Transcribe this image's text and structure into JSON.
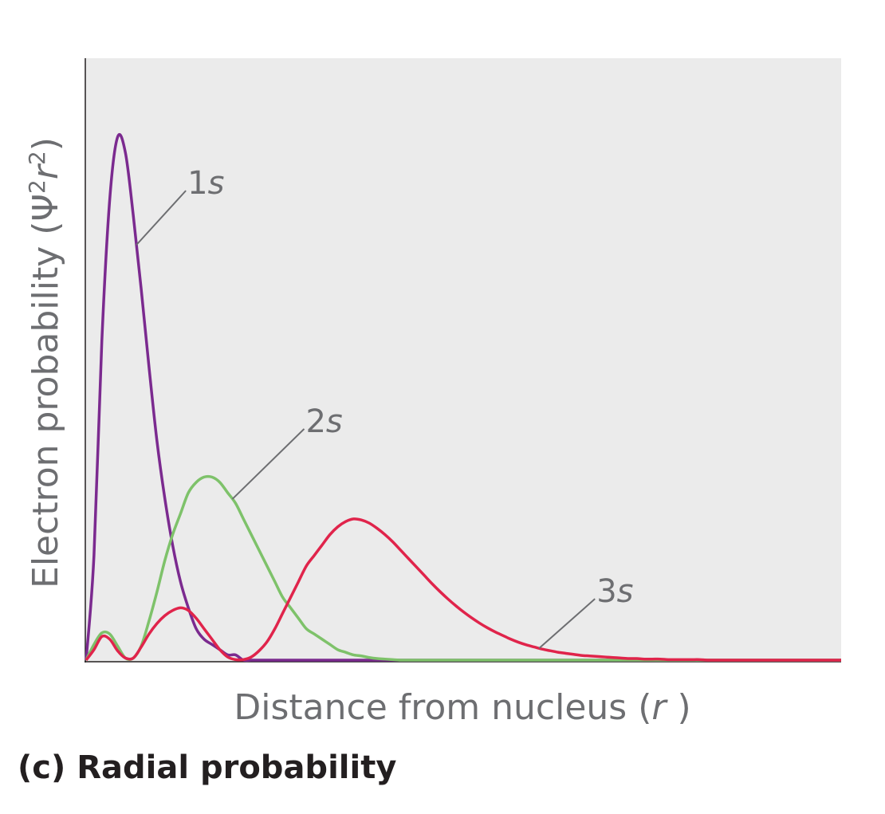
{
  "caption": "(c) Radial probability",
  "chart_data": {
    "type": "line",
    "title": "",
    "xlabel": {
      "text": "Distance from nucleus (",
      "variable": "r",
      "close": " )"
    },
    "ylabel": {
      "text": "Electron probability (",
      "symbol": "Ψ",
      "sup1": "2",
      "variable": "r",
      "sup2": "2",
      "close": ")"
    },
    "ticks": "none",
    "grid": false,
    "background_color": "#ebebeb",
    "x": [
      0,
      0.5,
      1,
      1.5,
      2,
      2.5,
      3,
      3.5,
      4,
      4.5,
      5,
      5.5,
      6,
      6.5,
      7,
      7.5,
      8,
      8.5,
      9,
      9.5,
      10,
      10.5,
      11,
      11.5,
      12,
      12.5,
      13,
      13.5,
      14,
      14.5,
      15,
      15.5,
      16,
      16.5,
      17,
      17.5,
      18,
      18.5,
      19,
      19.5,
      20,
      20.5,
      21,
      21.5,
      22,
      22.5,
      23,
      23.5,
      24,
      24.5,
      25,
      25.5,
      26,
      26.5,
      27,
      27.5,
      28,
      28.5,
      29,
      29.5,
      30,
      30.5,
      31,
      31.5,
      32,
      32.5,
      33,
      33.5,
      34,
      34.5,
      35,
      35.5,
      36,
      36.5,
      37,
      37.5,
      38,
      38.5,
      39,
      39.5,
      40,
      40.5,
      41,
      41.5,
      42,
      42.5,
      43,
      43.5,
      44,
      44.5,
      45,
      45.5,
      46,
      46.5,
      47,
      47.5,
      48
    ],
    "series": [
      {
        "name": "1s",
        "color": "#7b2a8f",
        "values": [
          0,
          0.2,
          0.61,
          0.88,
          1,
          0.97,
          0.85,
          0.71,
          0.56,
          0.42,
          0.31,
          0.22,
          0.15,
          0.1,
          0.06,
          0.04,
          0.03,
          0.02,
          0.01,
          0.01,
          0,
          0,
          0,
          0,
          0,
          0,
          0,
          0,
          0,
          0,
          0,
          0,
          0,
          0,
          0,
          0,
          0,
          0,
          0,
          0,
          0,
          0,
          0,
          0,
          0,
          0,
          0,
          0,
          0,
          0,
          0,
          0,
          0,
          0,
          0,
          0,
          0,
          0,
          0,
          0,
          0,
          0,
          0,
          0,
          0,
          0,
          0,
          0,
          0,
          0,
          0,
          0,
          0,
          0,
          0,
          0,
          0,
          0,
          0,
          0,
          0,
          0,
          0,
          0,
          0,
          0,
          0,
          0,
          0,
          0,
          0,
          0,
          0,
          0,
          0,
          0,
          0
        ]
      },
      {
        "name": "2s",
        "color": "#7ec26a",
        "values": [
          0,
          0.03,
          0.052,
          0.05,
          0.027,
          0.004,
          0.004,
          0.027,
          0.075,
          0.13,
          0.19,
          0.24,
          0.28,
          0.32,
          0.34,
          0.35,
          0.35,
          0.34,
          0.32,
          0.3,
          0.27,
          0.24,
          0.21,
          0.18,
          0.15,
          0.12,
          0.1,
          0.08,
          0.06,
          0.05,
          0.04,
          0.03,
          0.02,
          0.015,
          0.01,
          0.008,
          0.005,
          0.003,
          0.002,
          0.001,
          0,
          0,
          0,
          0,
          0,
          0,
          0,
          0,
          0,
          0,
          0,
          0,
          0,
          0,
          0,
          0,
          0,
          0,
          0,
          0,
          0,
          0,
          0,
          0,
          0,
          0,
          0,
          0,
          0,
          0,
          0,
          0,
          0,
          0,
          0,
          0,
          0,
          0,
          0,
          0,
          0,
          0,
          0,
          0,
          0,
          0,
          0,
          0,
          0,
          0,
          0,
          0,
          0,
          0,
          0,
          0,
          0
        ]
      },
      {
        "name": "3s",
        "color": "#e0244b",
        "values": [
          0,
          0.02,
          0.045,
          0.04,
          0.018,
          0.004,
          0.004,
          0.025,
          0.05,
          0.07,
          0.085,
          0.095,
          0.1,
          0.095,
          0.08,
          0.06,
          0.04,
          0.02,
          0.006,
          0.001,
          0.001,
          0.006,
          0.018,
          0.035,
          0.06,
          0.09,
          0.12,
          0.15,
          0.18,
          0.2,
          0.22,
          0.24,
          0.255,
          0.265,
          0.27,
          0.268,
          0.262,
          0.252,
          0.24,
          0.226,
          0.21,
          0.194,
          0.178,
          0.162,
          0.146,
          0.131,
          0.117,
          0.104,
          0.092,
          0.081,
          0.071,
          0.062,
          0.054,
          0.047,
          0.04,
          0.034,
          0.029,
          0.025,
          0.021,
          0.018,
          0.015,
          0.013,
          0.011,
          0.009,
          0.008,
          0.007,
          0.006,
          0.005,
          0.004,
          0.003,
          0.003,
          0.002,
          0.002,
          0.002,
          0.001,
          0.001,
          0.001,
          0.001,
          0.001,
          0,
          0,
          0,
          0,
          0,
          0,
          0,
          0,
          0,
          0,
          0,
          0,
          0,
          0,
          0,
          0,
          0,
          0
        ]
      }
    ],
    "annotations": [
      {
        "series": "1s",
        "text": "1",
        "variable": "s",
        "at_x": 3.2
      },
      {
        "series": "2s",
        "text": "2",
        "variable": "s",
        "at_x": 9.3
      },
      {
        "series": "3s",
        "text": "3",
        "variable": "s",
        "at_x": 28.8
      }
    ]
  }
}
